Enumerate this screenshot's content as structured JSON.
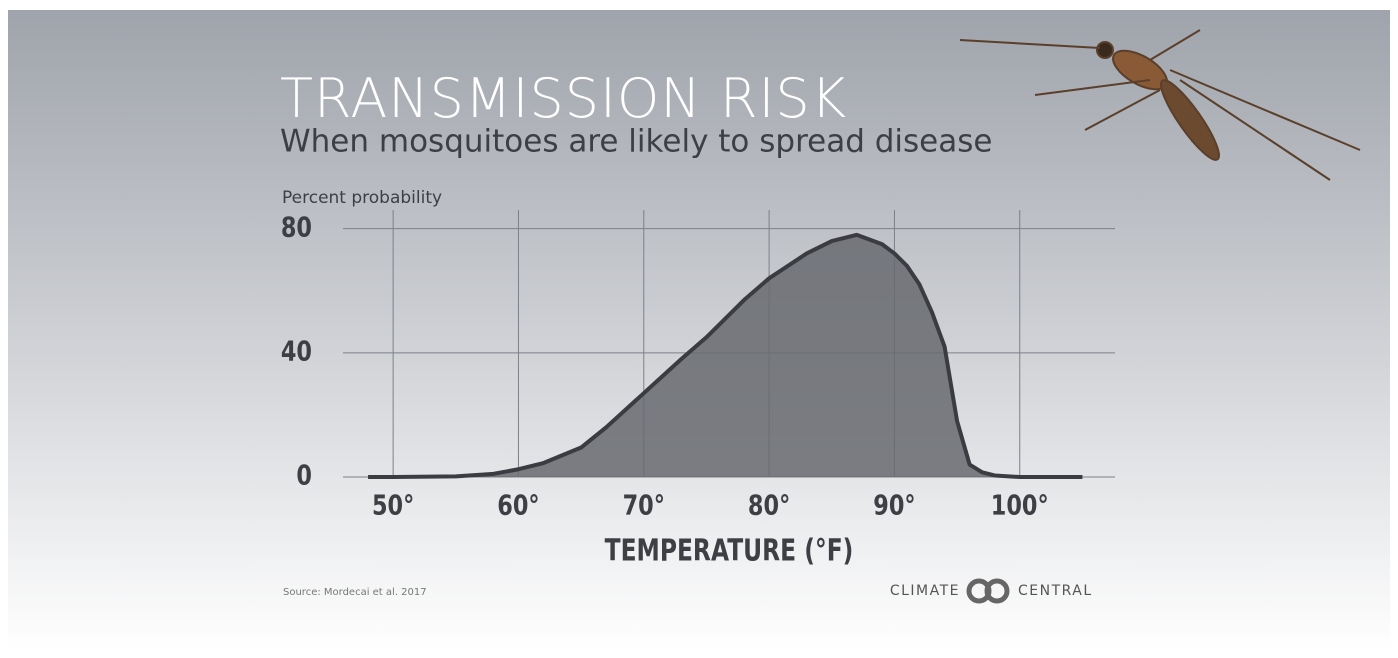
{
  "chart_data": {
    "type": "area",
    "title": "TRANSMISSION RISK",
    "subtitle": "When mosquitoes are likely to spread disease",
    "y_label": "Percent probability",
    "x_label": "TEMPERATURE (°F)",
    "source": "Source: Mordecai et al. 2017",
    "logo": [
      "CLIMATE",
      "CENTRAL"
    ],
    "x": [
      48,
      50,
      55,
      58,
      60,
      62,
      65,
      67,
      70,
      73,
      75,
      78,
      80,
      83,
      85,
      87,
      89,
      90,
      91,
      92,
      93,
      94,
      95,
      96,
      97,
      98,
      100,
      105
    ],
    "series": [
      {
        "name": "Percent probability",
        "color": "#676a70",
        "values": [
          0,
          0,
          0.2,
          1,
          2.5,
          4.5,
          9.5,
          16,
          27,
          38,
          45,
          57,
          64,
          72,
          76,
          78,
          75,
          72,
          68,
          62,
          53,
          42,
          18,
          4,
          1.5,
          0.5,
          0,
          0
        ]
      }
    ],
    "line_color": "#3a3c41",
    "xlim": [
      46,
      107.6
    ],
    "ylim": [
      0,
      86
    ],
    "xticks": [
      {
        "value": 50,
        "label": "50°"
      },
      {
        "value": 60,
        "label": "60°"
      },
      {
        "value": 70,
        "label": "70°"
      },
      {
        "value": 80,
        "label": "80°"
      },
      {
        "value": 90,
        "label": "90°"
      },
      {
        "value": 100,
        "label": "100°"
      }
    ],
    "yticks": [
      0,
      40,
      80
    ],
    "grid": true
  }
}
